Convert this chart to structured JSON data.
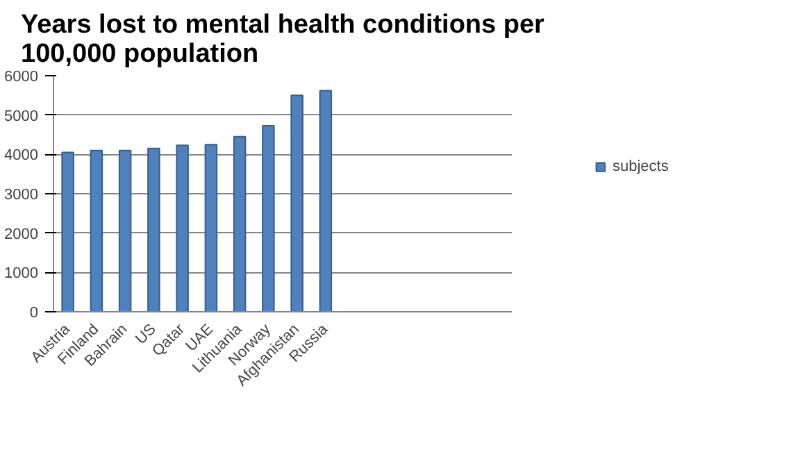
{
  "chart_data": {
    "type": "bar",
    "title": "Years lost to mental health conditions per 100,000 population",
    "categories": [
      "Austria",
      "Finland",
      "Bahrain",
      "US",
      "Qatar",
      "UAE",
      "Lithuania",
      "Norway",
      "Afghanistan",
      "Russia",
      null,
      null,
      null,
      null,
      null,
      null
    ],
    "series": [
      {
        "name": "subjects",
        "color": "#4f81bd",
        "values": [
          4050,
          4100,
          4100,
          4150,
          4230,
          4250,
          4450,
          4730,
          5500,
          5620,
          null,
          null,
          null,
          null,
          null,
          null
        ]
      }
    ],
    "ylim": [
      0,
      6000
    ],
    "yticks": [
      0,
      1000,
      2000,
      3000,
      4000,
      5000,
      6000
    ],
    "grid": "y",
    "legend": "right"
  }
}
